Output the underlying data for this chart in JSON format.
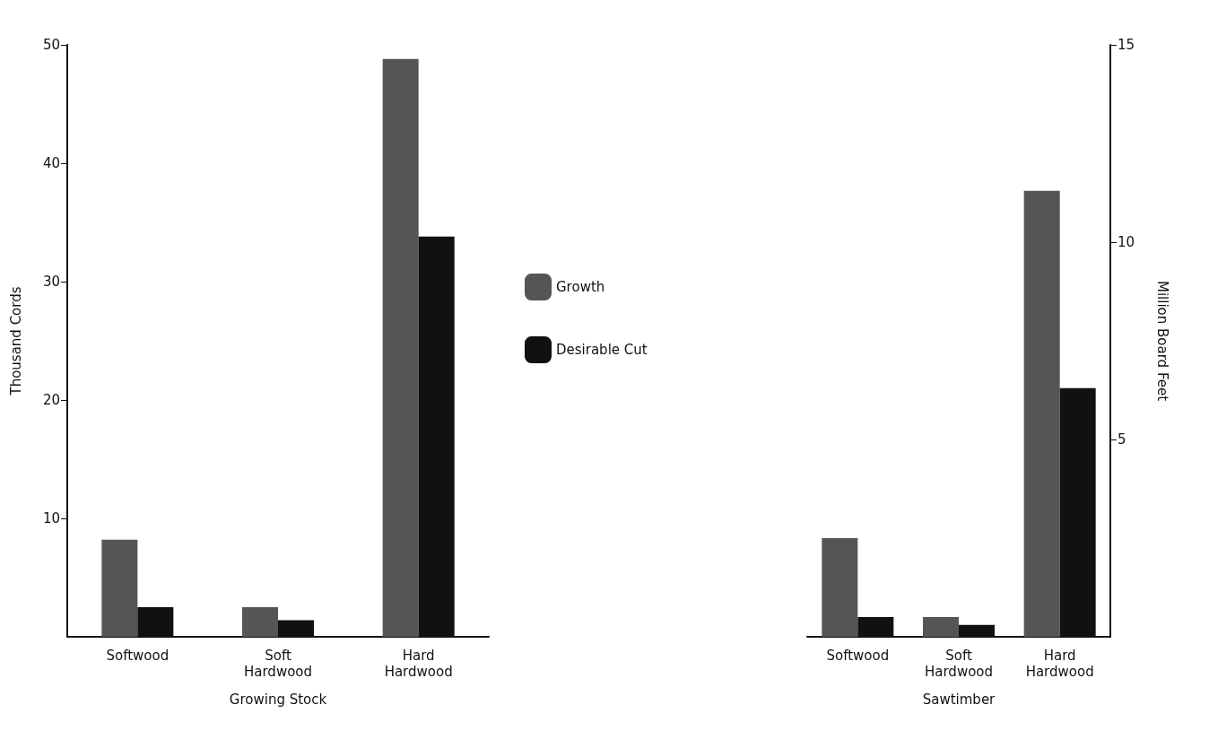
{
  "chart_data": [
    {
      "type": "bar",
      "xlabel": "Growing Stock",
      "ylabel": "Thousand Cords",
      "categories": [
        "Softwood",
        "Soft\nHardwood",
        "Hard\nHardwood"
      ],
      "series": [
        {
          "name": "Growth",
          "color": "#555555",
          "values": [
            8.2,
            2.5,
            48.8
          ]
        },
        {
          "name": "Desirable Cut",
          "color": "#111111",
          "values": [
            2.5,
            1.4,
            33.8
          ]
        }
      ],
      "ylim": [
        0,
        50
      ],
      "yticks": [
        10,
        20,
        30,
        40,
        50
      ],
      "grid": false,
      "legend": "right"
    },
    {
      "type": "bar",
      "xlabel": "Sawtimber",
      "y2label": "Million Board Feet",
      "categories": [
        "Softwood",
        "Soft\nHardwood",
        "Hard\nHardwood"
      ],
      "series": [
        {
          "color": "#555555",
          "values": [
            2.5,
            0.5,
            11.3
          ],
          "axis": "y2"
        },
        {
          "color": "#111111",
          "values": [
            0.5,
            0.3,
            6.3
          ],
          "axis": "y2"
        }
      ],
      "y2lim": [
        0,
        15
      ],
      "y2ticks": [
        5,
        10,
        15
      ],
      "grid": false,
      "legend": false
    }
  ]
}
